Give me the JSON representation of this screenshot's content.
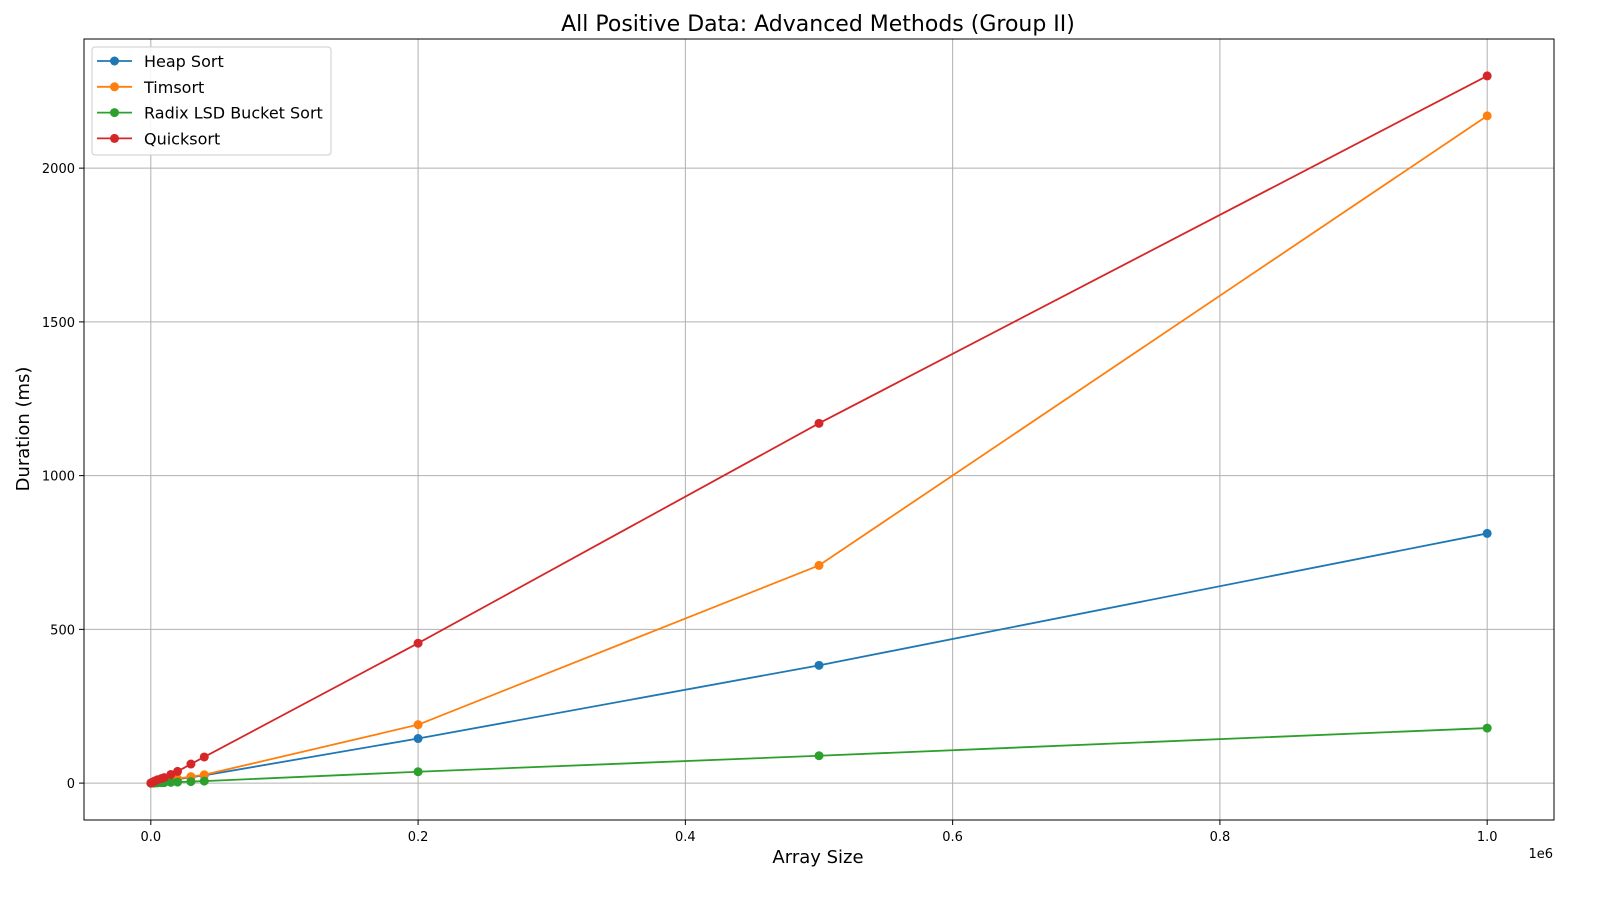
{
  "chart_data": {
    "type": "line",
    "title": "All Positive Data: Advanced Methods (Group II)",
    "xlabel": "Array Size",
    "ylabel": "Duration (ms)",
    "x_offset_label": "1e6",
    "xlim": [
      -0.05,
      1.05
    ],
    "ylim": [
      -120,
      2420
    ],
    "x_ticks": [
      0.0,
      0.2,
      0.4,
      0.6,
      0.8,
      1.0
    ],
    "x_tick_labels": [
      "0.0",
      "0.2",
      "0.4",
      "0.6",
      "0.8",
      "1.0"
    ],
    "y_ticks": [
      0,
      500,
      1000,
      1500,
      2000
    ],
    "y_tick_labels": [
      "0",
      "500",
      "1000",
      "1500",
      "2000"
    ],
    "grid": true,
    "legend_position": "top-left",
    "x": [
      0.0001,
      0.0005,
      0.001,
      0.002,
      0.003,
      0.005,
      0.008,
      0.01,
      0.015,
      0.02,
      0.03,
      0.04,
      0.2,
      0.5,
      1.0
    ],
    "series": [
      {
        "name": "Heap Sort",
        "color": "#1f77b4",
        "values": [
          0.1,
          0.3,
          0.6,
          1.2,
          1.8,
          3.0,
          4.8,
          6.0,
          9.5,
          12.5,
          19.0,
          25.0,
          145,
          383,
          812
        ]
      },
      {
        "name": "Timsort",
        "color": "#ff7f0e",
        "values": [
          0.1,
          0.3,
          0.7,
          1.4,
          2.1,
          3.5,
          5.6,
          7.0,
          11.0,
          14.5,
          21.0,
          27.0,
          190,
          708,
          2170
        ]
      },
      {
        "name": "Radix LSD Bucket Sort",
        "color": "#2ca02c",
        "values": [
          0.05,
          0.1,
          0.2,
          0.3,
          0.5,
          0.8,
          1.3,
          1.6,
          2.4,
          3.2,
          5.0,
          6.5,
          37,
          89,
          179
        ]
      },
      {
        "name": "Quicksort",
        "color": "#d62728",
        "values": [
          0.3,
          1.2,
          2.3,
          4.5,
          6.8,
          11.0,
          15.0,
          18.0,
          28.0,
          38.0,
          62.0,
          85.0,
          455,
          1170,
          2300
        ]
      }
    ]
  }
}
